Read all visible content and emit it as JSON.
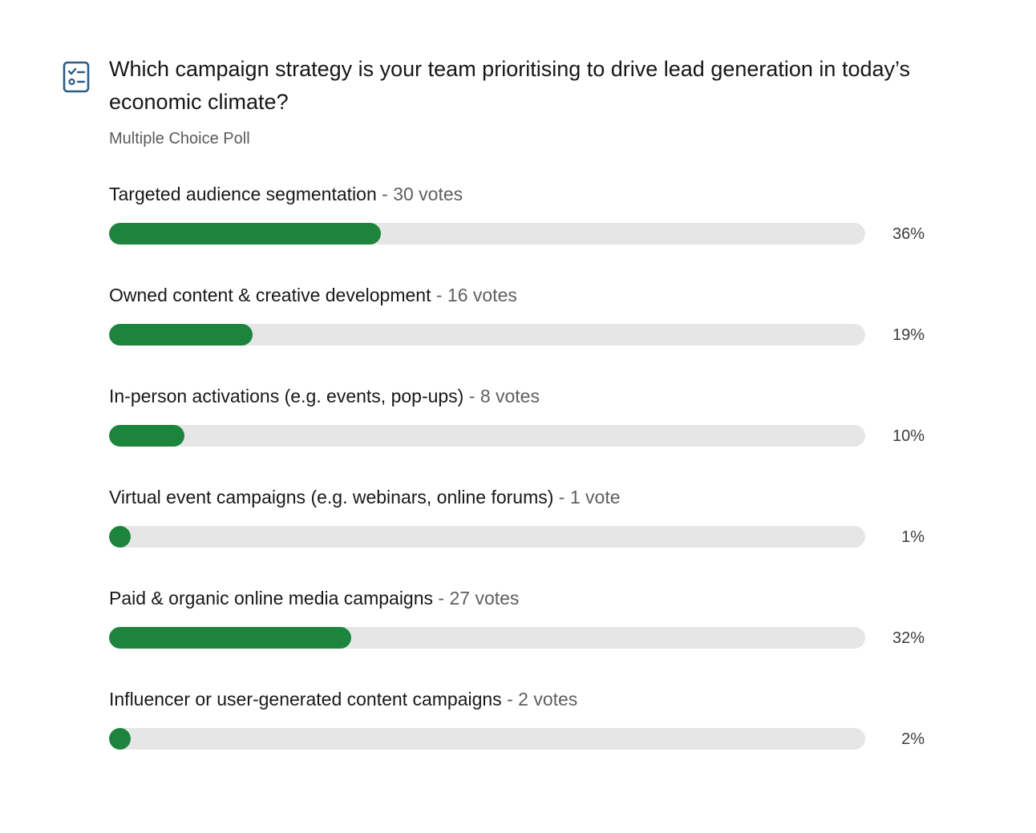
{
  "poll": {
    "icon": "checklist-icon",
    "question": "Which campaign strategy is your team prioritising to drive lead generation in today’s economic climate?",
    "type_label": "Multiple Choice Poll",
    "accent_color": "#1c843c",
    "track_color": "#e6e6e6",
    "options": [
      {
        "label": "Targeted audience segmentation",
        "separator": " - ",
        "votes_text": "30 votes",
        "votes": 30,
        "percent_text": "36%",
        "percent": 36
      },
      {
        "label": "Owned content & creative development",
        "separator": " - ",
        "votes_text": "16 votes",
        "votes": 16,
        "percent_text": "19%",
        "percent": 19
      },
      {
        "label": "In-person activations (e.g. events, pop-ups)",
        "separator": " - ",
        "votes_text": "8 votes",
        "votes": 8,
        "percent_text": "10%",
        "percent": 10
      },
      {
        "label": "Virtual event campaigns (e.g. webinars, online forums)",
        "separator": " - ",
        "votes_text": "1 vote",
        "votes": 1,
        "percent_text": "1%",
        "percent": 1
      },
      {
        "label": "Paid & organic online media campaigns",
        "separator": " - ",
        "votes_text": "27 votes",
        "votes": 27,
        "percent_text": "32%",
        "percent": 32
      },
      {
        "label": "Influencer or user-generated content campaigns",
        "separator": " - ",
        "votes_text": "2 votes",
        "votes": 2,
        "percent_text": "2%",
        "percent": 2
      }
    ]
  }
}
